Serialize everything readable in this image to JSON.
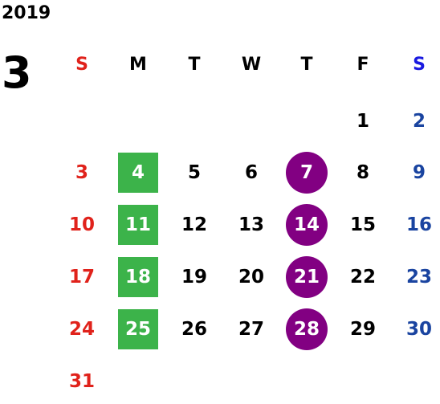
{
  "year": "2019",
  "month": "3",
  "colors": {
    "sunday": "#e0221b",
    "saturday": "#1a44a0",
    "weekday": "#000000",
    "sunday_header": "#e0221b",
    "saturday_header": "#1a1ae0",
    "highlight_text": "#ffffff",
    "green_mark": "#3cb34a",
    "purple_mark": "#820082"
  },
  "weekdays": [
    "S",
    "M",
    "T",
    "W",
    "T",
    "F",
    "S"
  ],
  "weeks": [
    [
      "",
      "",
      "",
      "",
      "",
      "1",
      "2"
    ],
    [
      "3",
      "4",
      "5",
      "6",
      "7",
      "8",
      "9"
    ],
    [
      "10",
      "11",
      "12",
      "13",
      "14",
      "15",
      "16"
    ],
    [
      "17",
      "18",
      "19",
      "20",
      "21",
      "22",
      "23"
    ],
    [
      "24",
      "25",
      "26",
      "27",
      "28",
      "29",
      "30"
    ],
    [
      "31",
      "",
      "",
      "",
      "",
      "",
      ""
    ]
  ],
  "marked_days": {
    "green_square": [
      "4",
      "11",
      "18",
      "25"
    ],
    "purple_circle": [
      "7",
      "14",
      "21",
      "28"
    ]
  }
}
